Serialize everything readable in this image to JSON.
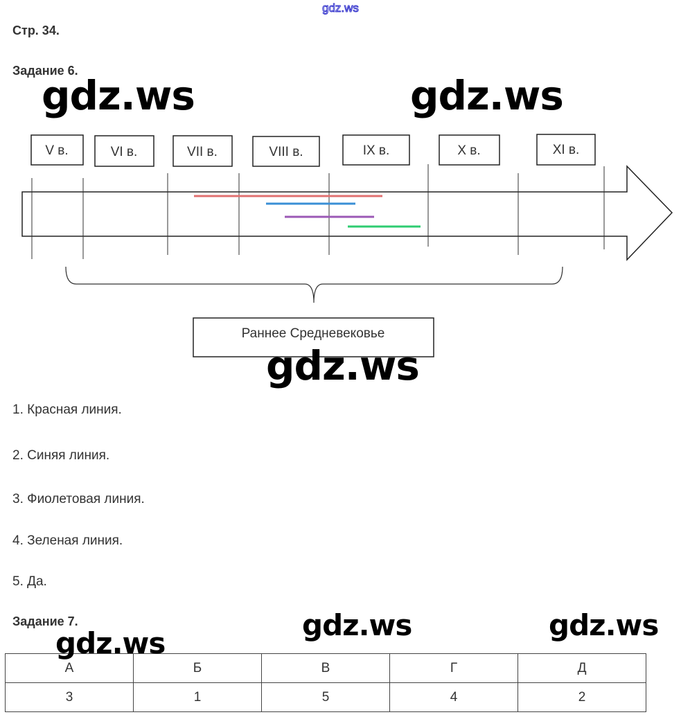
{
  "watermark": "gdz.ws",
  "page_label": "Стр. 34.",
  "task6": {
    "title": "Задание 6.",
    "centuries": [
      "V в.",
      "VI в.",
      "VII в.",
      "VIII в.",
      "IX в.",
      "X в.",
      "XI в."
    ],
    "period_label": "Раннее Средневековье",
    "line_colors": {
      "red": "#e07070",
      "blue": "#3a8fd6",
      "purple": "#9b59b6",
      "green": "#2ecc71"
    },
    "answers": [
      "1. Красная линия.",
      "2. Синяя линия.",
      "3. Фиолетовая линия.",
      "4. Зеленая линия.",
      "5. Да."
    ]
  },
  "task7": {
    "title": "Задание 7.",
    "headers": [
      "А",
      "Б",
      "В",
      "Г",
      "Д"
    ],
    "values": [
      "3",
      "1",
      "5",
      "4",
      "2"
    ]
  }
}
